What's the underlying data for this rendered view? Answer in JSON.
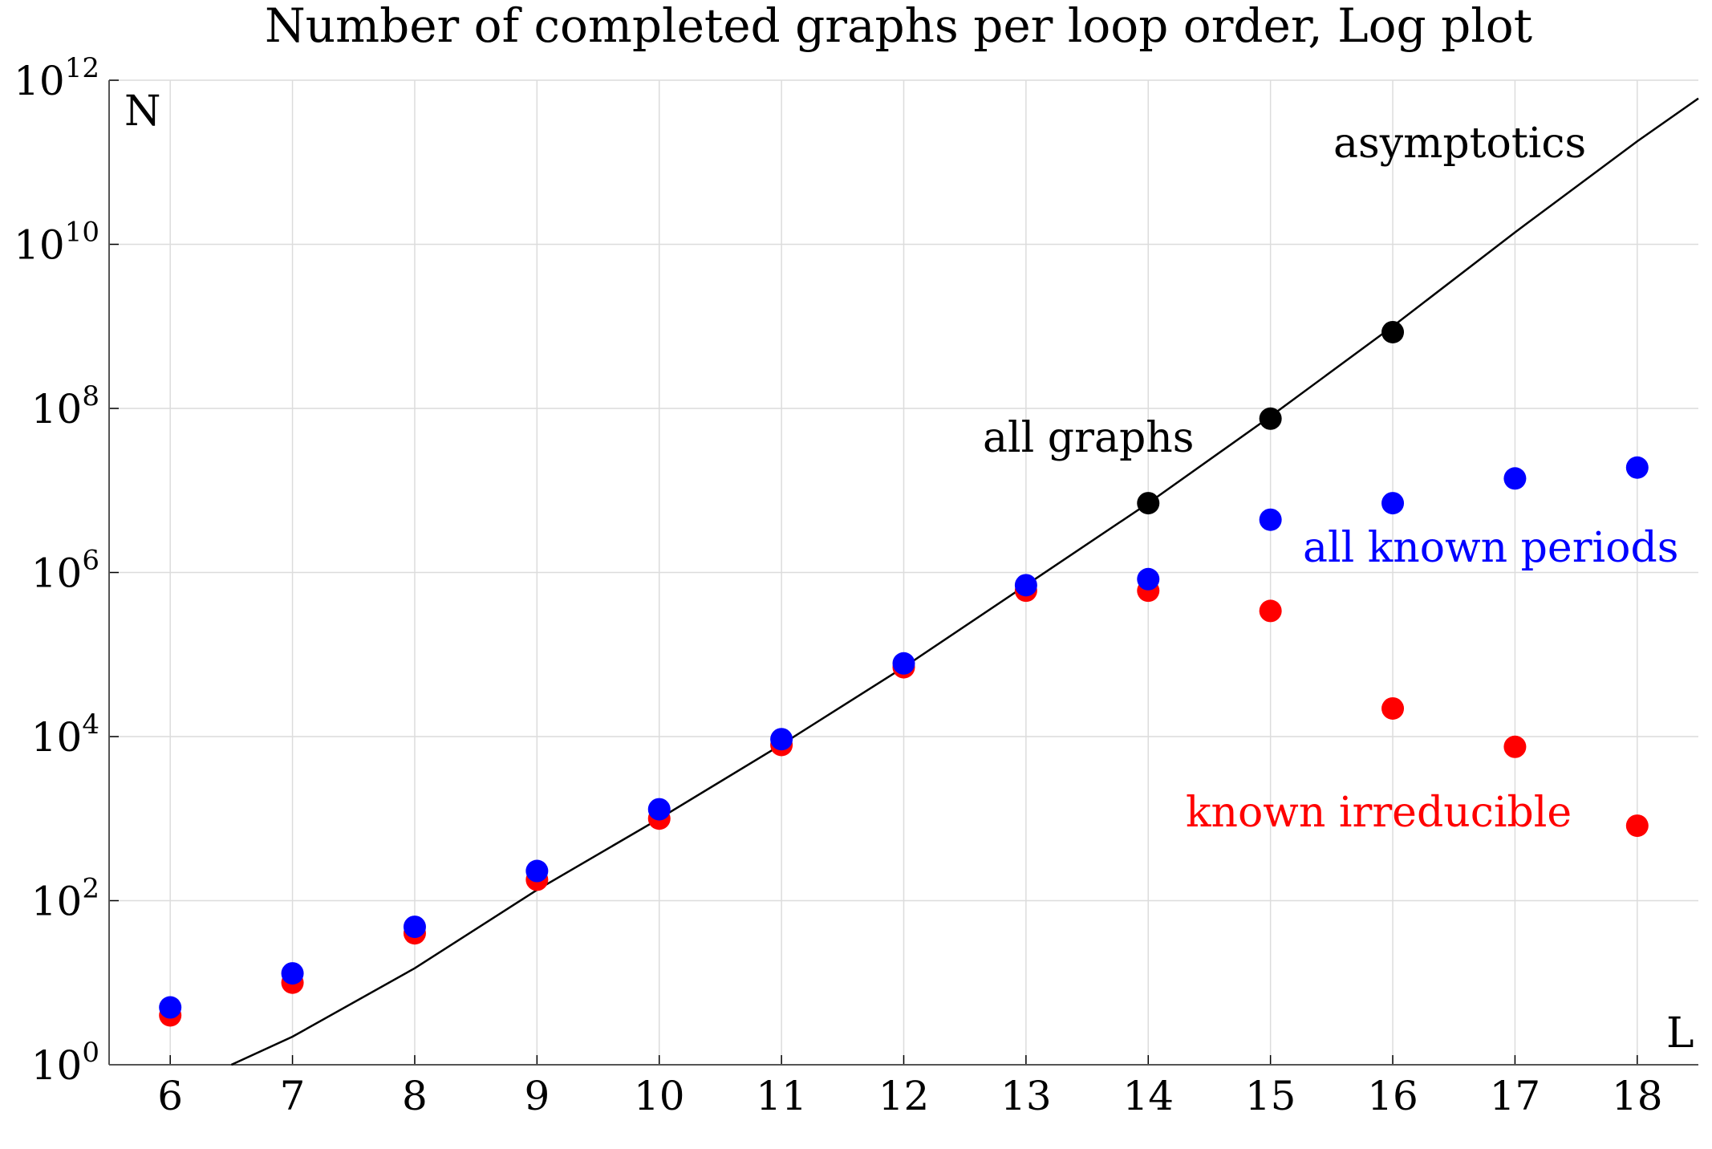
{
  "chart_data": {
    "type": "scatter",
    "title": "Number of completed graphs per loop order, Log plot",
    "xlabel": "L",
    "ylabel": "N",
    "xlim": [
      5.5,
      18.5
    ],
    "ylim_exponents": [
      0,
      12
    ],
    "yscale": "log10",
    "grid": true,
    "x_ticks": [
      6,
      7,
      8,
      9,
      10,
      11,
      12,
      13,
      14,
      15,
      16,
      17,
      18
    ],
    "y_ticks": [
      {
        "base": "10",
        "exp": "0",
        "value": 1
      },
      {
        "base": "10",
        "exp": "2",
        "value": 100
      },
      {
        "base": "10",
        "exp": "4",
        "value": 10000
      },
      {
        "base": "10",
        "exp": "6",
        "value": 1000000
      },
      {
        "base": "10",
        "exp": "8",
        "value": 100000000
      },
      {
        "base": "10",
        "exp": "10",
        "value": 10000000000
      },
      {
        "base": "10",
        "exp": "12",
        "value": 1000000000000
      }
    ],
    "series": [
      {
        "name": "known irreducible",
        "color": "#ff0000",
        "x": [
          6,
          7,
          8,
          9,
          10,
          11,
          12,
          13,
          14,
          15,
          16,
          17,
          18
        ],
        "y": [
          4,
          10,
          40,
          180,
          1000,
          7900,
          70000,
          600000,
          600000,
          340000,
          22000,
          7500,
          820
        ]
      },
      {
        "name": "all known periods",
        "color": "#0000ff",
        "x": [
          6,
          7,
          8,
          9,
          10,
          11,
          12,
          13,
          14,
          15,
          16,
          17,
          18
        ],
        "y": [
          5,
          13,
          48,
          230,
          1300,
          9300,
          78000,
          700000,
          830000,
          4400000,
          7000000,
          14000000,
          19000000
        ]
      },
      {
        "name": "all graphs",
        "color": "#000000",
        "x": [
          14,
          15,
          16
        ],
        "y": [
          7000000,
          75000000,
          850000000
        ]
      }
    ],
    "curve": {
      "name": "asymptotics",
      "color": "#000000",
      "x": [
        6.5,
        7,
        8,
        9,
        10,
        11,
        12,
        13,
        14,
        15,
        16,
        17,
        18,
        18.5
      ],
      "y": [
        1,
        2.2,
        15,
        135,
        1000,
        8000,
        70000,
        700000,
        7000000,
        80000000,
        1000000000,
        14000000000,
        180000000000,
        600000000000
      ]
    },
    "annotations": [
      {
        "text": "asymptotics",
        "color": "#000000"
      },
      {
        "text": "all graphs",
        "color": "#000000"
      },
      {
        "text": "all known periods",
        "color": "#0000ff"
      },
      {
        "text": "known irreducible",
        "color": "#ff0000"
      }
    ]
  }
}
